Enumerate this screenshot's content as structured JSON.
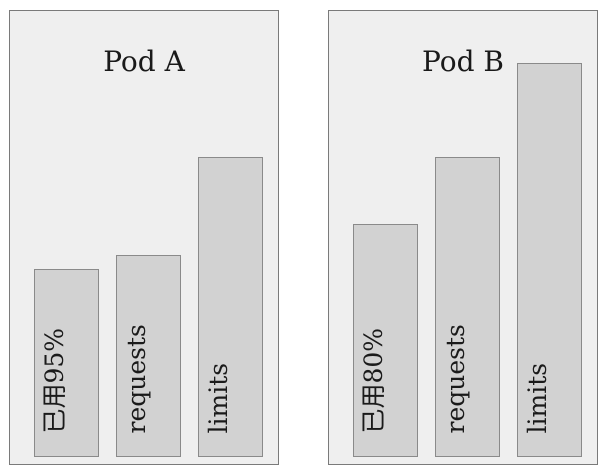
{
  "pods": [
    {
      "title": "Pod A",
      "bars": [
        {
          "label": "已用95%",
          "level": 0.42
        },
        {
          "label": "requests",
          "level": 0.45
        },
        {
          "label": "limits",
          "level": 0.67
        }
      ]
    },
    {
      "title": "Pod B",
      "bars": [
        {
          "label": "已用80%",
          "level": 0.52
        },
        {
          "label": "requests",
          "level": 0.67
        },
        {
          "label": "limits",
          "level": 0.88
        }
      ]
    }
  ],
  "colors": {
    "panel_fill": "#efefef",
    "panel_border": "#7a7a7a",
    "bar_fill": "#d2d2d2",
    "bar_border": "#8a8a8a",
    "text": "#1a1a1a"
  }
}
